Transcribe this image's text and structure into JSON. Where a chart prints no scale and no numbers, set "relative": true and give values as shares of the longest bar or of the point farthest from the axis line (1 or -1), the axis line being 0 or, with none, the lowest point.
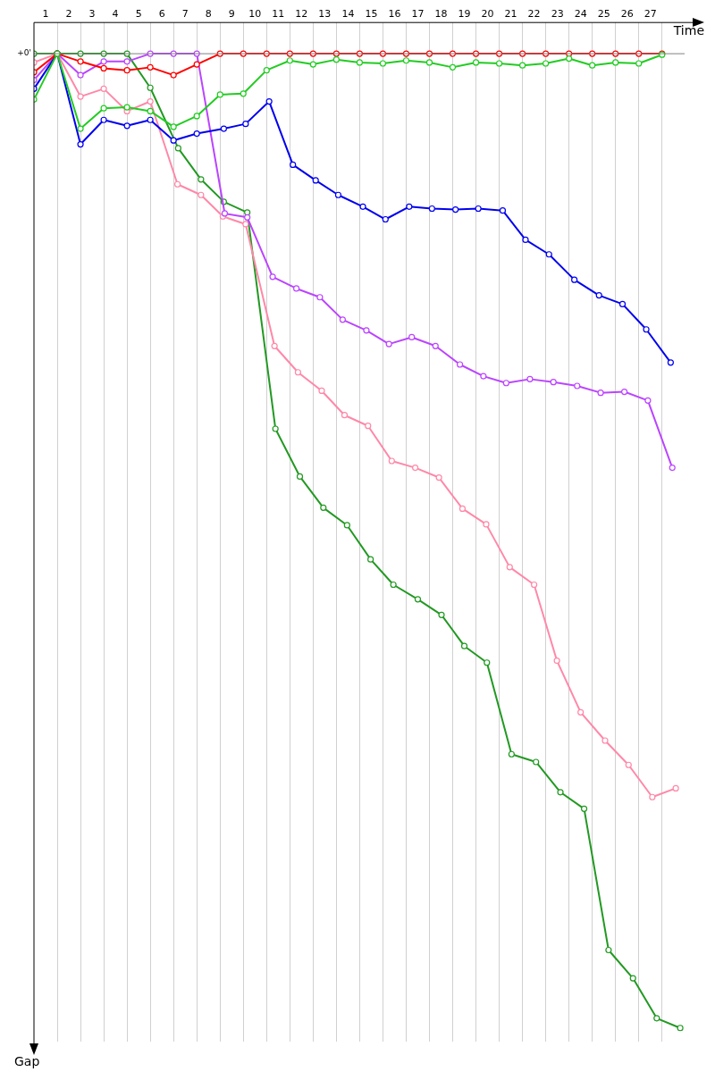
{
  "chart_data": {
    "type": "line",
    "xlabel": "Time",
    "ylabel": "Gap",
    "relative": true,
    "grid": "x",
    "legend": false,
    "marker": "circle",
    "line_style": "solid",
    "x": [
      0,
      1,
      2,
      3,
      4,
      5,
      6,
      7,
      8,
      9,
      10,
      11,
      12,
      13,
      14,
      15,
      16,
      17,
      18,
      19,
      20,
      21,
      22,
      23,
      24,
      25,
      26,
      27
    ],
    "xlim": [
      0,
      28.2
    ],
    "xticks": [
      {
        "value": 0.5,
        "label": "1"
      },
      {
        "value": 1,
        "label": null
      },
      {
        "value": 1.5,
        "label": "2"
      },
      {
        "value": 2,
        "label": null
      },
      {
        "value": 2.5,
        "label": "3"
      },
      {
        "value": 3,
        "label": null
      },
      {
        "value": 3.5,
        "label": "4"
      },
      {
        "value": 4,
        "label": null
      },
      {
        "value": 4.5,
        "label": "5"
      },
      {
        "value": 5,
        "label": null
      },
      {
        "value": 5.5,
        "label": "6"
      },
      {
        "value": 6,
        "label": null
      },
      {
        "value": 6.5,
        "label": "7"
      },
      {
        "value": 7,
        "label": null
      },
      {
        "value": 7.5,
        "label": "8"
      },
      {
        "value": 8,
        "label": null
      },
      {
        "value": 8.5,
        "label": "9"
      },
      {
        "value": 9,
        "label": null
      },
      {
        "value": 9.5,
        "label": "10"
      },
      {
        "value": 10,
        "label": null
      },
      {
        "value": 10.5,
        "label": "11"
      },
      {
        "value": 11,
        "label": null
      },
      {
        "value": 11.5,
        "label": "12"
      },
      {
        "value": 12,
        "label": null
      },
      {
        "value": 12.5,
        "label": "13"
      },
      {
        "value": 13,
        "label": null
      },
      {
        "value": 13.5,
        "label": "14"
      },
      {
        "value": 14,
        "label": null
      },
      {
        "value": 14.5,
        "label": "15"
      },
      {
        "value": 15,
        "label": null
      },
      {
        "value": 15.5,
        "label": "16"
      },
      {
        "value": 16,
        "label": null
      },
      {
        "value": 16.5,
        "label": "17"
      },
      {
        "value": 17,
        "label": null
      },
      {
        "value": 17.5,
        "label": "18"
      },
      {
        "value": 18,
        "label": null
      },
      {
        "value": 18.5,
        "label": "19"
      },
      {
        "value": 19,
        "label": null
      },
      {
        "value": 19.5,
        "label": "20"
      },
      {
        "value": 20,
        "label": null
      },
      {
        "value": 20.5,
        "label": "21"
      },
      {
        "value": 21,
        "label": null
      },
      {
        "value": 21.5,
        "label": "22"
      },
      {
        "value": 22,
        "label": null
      },
      {
        "value": 22.5,
        "label": "23"
      },
      {
        "value": 23,
        "label": null
      },
      {
        "value": 23.5,
        "label": "24"
      },
      {
        "value": 24,
        "label": null
      },
      {
        "value": 24.5,
        "label": "25"
      },
      {
        "value": 25,
        "label": null
      },
      {
        "value": 25.5,
        "label": "26"
      },
      {
        "value": 26,
        "label": null
      },
      {
        "value": 26.5,
        "label": "27"
      },
      {
        "value": 27,
        "label": null
      }
    ],
    "ref_lines": [
      {
        "axis": "y",
        "value": 0,
        "label": "+0'",
        "color": "#808080"
      }
    ],
    "series": [
      {
        "color": "#22cc22",
        "values": [
          -0.047,
          0,
          -0.077,
          -0.056,
          -0.055,
          -0.059,
          -0.075,
          -0.064,
          -0.042,
          -0.041,
          -0.017,
          -0.007,
          -0.011,
          -0.006,
          -0.009,
          -0.01,
          -0.007,
          -0.009,
          -0.014,
          -0.009,
          -0.01,
          -0.012,
          -0.01,
          -0.005,
          -0.012,
          -0.009,
          -0.01,
          -0.001
        ]
      },
      {
        "color": "#ff0000",
        "values": [
          -0.019,
          0,
          -0.008,
          -0.015,
          -0.017,
          -0.014,
          -0.022,
          -0.011,
          0,
          0,
          0,
          0,
          0,
          0,
          0,
          0,
          0,
          0,
          0,
          0,
          0,
          0,
          0,
          0,
          0,
          0,
          0,
          0
        ]
      },
      {
        "color": "#0000ee",
        "x": [
          0,
          1,
          2,
          3,
          4,
          5,
          6,
          7,
          8.16,
          9.1,
          10.11,
          11.13,
          12.11,
          13.08,
          14.14,
          15.11,
          16.13,
          17.11,
          18.12,
          19.1,
          20.15,
          21.13,
          22.14,
          23.23,
          24.29,
          25.3,
          26.32,
          27.37
        ],
        "values": [
          -0.036,
          0,
          -0.093,
          -0.068,
          -0.074,
          -0.068,
          -0.089,
          -0.082,
          -0.077,
          -0.072,
          -0.049,
          -0.114,
          -0.13,
          -0.145,
          -0.157,
          -0.17,
          -0.157,
          -0.159,
          -0.16,
          -0.159,
          -0.161,
          -0.191,
          -0.206,
          -0.232,
          -0.248,
          -0.257,
          -0.283,
          -0.317
        ]
      },
      {
        "color": "#bb44ff",
        "x": [
          0,
          1,
          2,
          3,
          4,
          5,
          6,
          7,
          8.2,
          9.17,
          10.26,
          11.28,
          12.29,
          13.27,
          14.29,
          15.26,
          16.24,
          17.26,
          18.31,
          19.32,
          20.3,
          21.32,
          22.33,
          23.35,
          24.36,
          25.38,
          26.39,
          27.44
        ],
        "values": [
          -0.027,
          0,
          -0.022,
          -0.008,
          -0.008,
          0,
          0,
          0,
          -0.164,
          -0.168,
          -0.229,
          -0.241,
          -0.25,
          -0.273,
          -0.284,
          -0.298,
          -0.291,
          -0.3,
          -0.319,
          -0.331,
          -0.338,
          -0.334,
          -0.337,
          -0.341,
          -0.348,
          -0.347,
          -0.356,
          -0.425
        ]
      },
      {
        "color": "#ff88a8",
        "x": [
          0,
          1,
          2,
          3,
          4,
          5,
          6.17,
          7.18,
          8.12,
          9.1,
          10.34,
          11.35,
          12.37,
          13.35,
          14.36,
          15.38,
          16.39,
          17.41,
          18.42,
          19.44,
          20.45,
          21.5,
          22.48,
          23.5,
          24.55,
          25.56,
          26.58,
          27.59
        ],
        "values": [
          -0.009,
          0,
          -0.044,
          -0.036,
          -0.059,
          -0.049,
          -0.134,
          -0.145,
          -0.167,
          -0.175,
          -0.3,
          -0.327,
          -0.346,
          -0.371,
          -0.382,
          -0.418,
          -0.425,
          -0.435,
          -0.467,
          -0.483,
          -0.527,
          -0.545,
          -0.623,
          -0.676,
          -0.705,
          -0.73,
          -0.763,
          -0.754
        ]
      },
      {
        "color": "#229922",
        "x": [
          0,
          1,
          2,
          3,
          4,
          5,
          6.2,
          7.18,
          8.16,
          9.17,
          10.38,
          11.43,
          12.44,
          13.46,
          14.47,
          15.45,
          16.5,
          17.52,
          18.5,
          19.47,
          20.53,
          21.58,
          22.63,
          23.65,
          24.7,
          25.75,
          26.77,
          27.78
        ],
        "values": [
          0,
          0,
          0,
          0,
          0,
          -0.035,
          -0.097,
          -0.129,
          -0.152,
          -0.163,
          -0.385,
          -0.434,
          -0.466,
          -0.484,
          -0.519,
          -0.545,
          -0.56,
          -0.576,
          -0.608,
          -0.625,
          -0.719,
          -0.727,
          -0.758,
          -0.775,
          -0.92,
          -0.949,
          -0.99,
          -1
        ]
      }
    ]
  }
}
